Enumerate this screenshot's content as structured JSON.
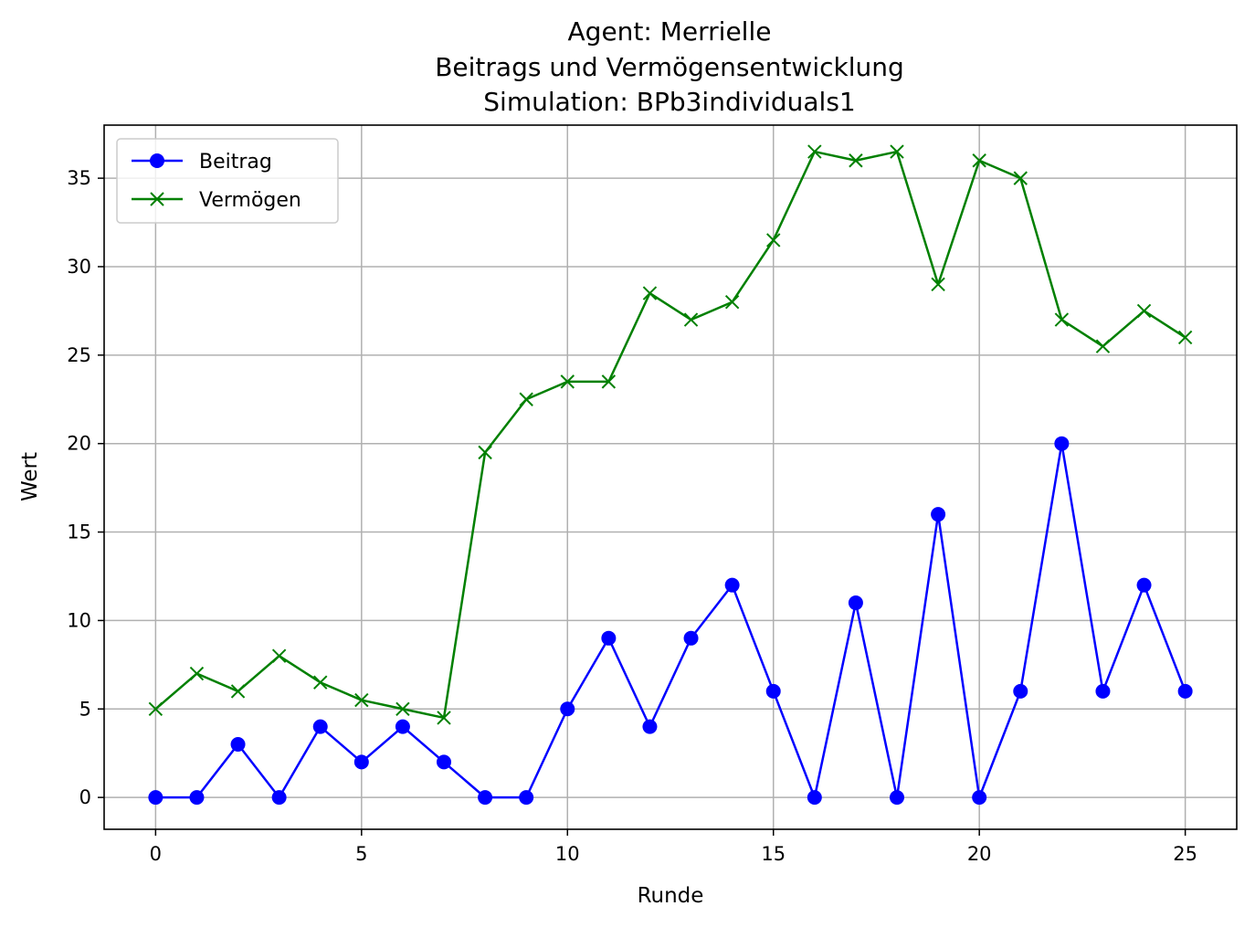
{
  "chart_data": {
    "type": "line",
    "title": "Agent: Merrielle",
    "subtitle": "Beitrags und Vermögensentwicklung",
    "subtitle2": "Simulation: BPb3individuals1",
    "xlabel": "Runde",
    "ylabel": "Wert",
    "xlim": [
      -1.25,
      26.25
    ],
    "ylim": [
      -1.8,
      38.0
    ],
    "grid": true,
    "legend_position": "top-left",
    "x": [
      0,
      1,
      2,
      3,
      4,
      5,
      6,
      7,
      8,
      9,
      10,
      11,
      12,
      13,
      14,
      15,
      16,
      17,
      18,
      19,
      20,
      21,
      22,
      23,
      24,
      25
    ],
    "xticks": [
      "0",
      "5",
      "10",
      "15",
      "20",
      "25"
    ],
    "yticks": [
      "0",
      "5",
      "10",
      "15",
      "20",
      "25",
      "30",
      "35"
    ],
    "series": [
      {
        "name": "Beitrag",
        "color": "#0000ff",
        "marker": "circle",
        "values": [
          0,
          0,
          3,
          0,
          4,
          2,
          4,
          2,
          0,
          0,
          5,
          9,
          4,
          9,
          12,
          6,
          0,
          11,
          0,
          16,
          0,
          6,
          20,
          6,
          12,
          6
        ]
      },
      {
        "name": "Vermögen",
        "color": "#008000",
        "marker": "x",
        "values": [
          5,
          7,
          6,
          8,
          6.5,
          5.5,
          5,
          4.5,
          19.5,
          22.5,
          23.5,
          23.5,
          28.5,
          27,
          28,
          31.5,
          36.5,
          36,
          36.5,
          29,
          36,
          35,
          27,
          25.5,
          27.5,
          26
        ]
      }
    ]
  }
}
